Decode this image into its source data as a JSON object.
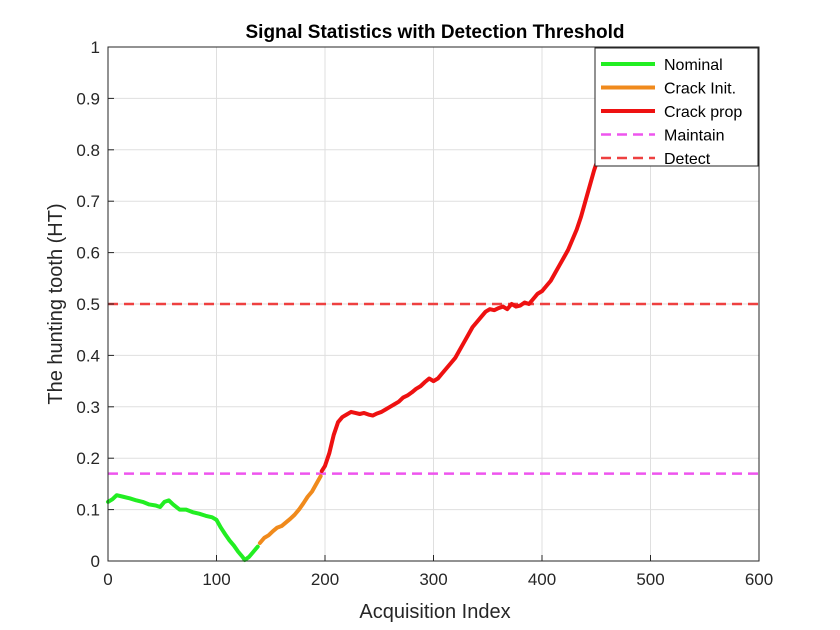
{
  "chart_data": {
    "type": "line",
    "title": "Signal Statistics with Detection Threshold",
    "xlabel": "Acquisition Index",
    "ylabel": "The hunting tooth (HT)",
    "xlim": [
      0,
      600
    ],
    "ylim": [
      0,
      1
    ],
    "xticks": [
      0,
      100,
      200,
      300,
      400,
      500,
      600
    ],
    "yticks": [
      0,
      0.1,
      0.2,
      0.3,
      0.4,
      0.5,
      0.6,
      0.7,
      0.8,
      0.9,
      1
    ],
    "grid": true,
    "legend_position": "top-right",
    "series": [
      {
        "name": "Nominal",
        "color": "#22ee22",
        "style": "solid",
        "x": [
          0,
          4,
          8,
          14,
          20,
          26,
          32,
          38,
          44,
          48,
          52,
          56,
          60,
          66,
          72,
          78,
          84,
          90,
          96,
          100,
          104,
          108,
          112,
          116,
          120,
          124,
          126,
          130,
          134,
          138
        ],
        "y": [
          0.115,
          0.12,
          0.128,
          0.125,
          0.122,
          0.118,
          0.115,
          0.11,
          0.108,
          0.105,
          0.115,
          0.118,
          0.11,
          0.1,
          0.1,
          0.095,
          0.092,
          0.088,
          0.085,
          0.08,
          0.065,
          0.052,
          0.04,
          0.03,
          0.018,
          0.008,
          0.002,
          0.008,
          0.018,
          0.028
        ]
      },
      {
        "name": "Crack Init.",
        "color": "#f08a1c",
        "style": "solid",
        "x": [
          140,
          144,
          148,
          152,
          156,
          160,
          164,
          168,
          172,
          176,
          180,
          184,
          188,
          192,
          196
        ],
        "y": [
          0.035,
          0.045,
          0.05,
          0.058,
          0.065,
          0.068,
          0.075,
          0.082,
          0.09,
          0.1,
          0.112,
          0.125,
          0.135,
          0.15,
          0.165
        ]
      },
      {
        "name": "Crack prop",
        "color": "#ee1111",
        "style": "solid",
        "x": [
          197,
          200,
          204,
          208,
          212,
          216,
          220,
          224,
          228,
          232,
          236,
          240,
          244,
          248,
          252,
          256,
          260,
          264,
          268,
          272,
          276,
          280,
          284,
          288,
          292,
          296,
          300,
          304,
          308,
          312,
          316,
          320,
          324,
          328,
          332,
          336,
          340,
          344,
          348,
          352,
          356,
          360,
          364,
          368,
          372,
          376,
          380,
          384,
          388,
          392,
          396,
          400,
          404,
          408,
          412,
          416,
          420,
          424,
          428,
          432,
          436,
          440,
          444,
          448,
          452,
          455
        ],
        "y": [
          0.175,
          0.185,
          0.21,
          0.245,
          0.27,
          0.28,
          0.285,
          0.29,
          0.288,
          0.286,
          0.288,
          0.285,
          0.283,
          0.287,
          0.29,
          0.295,
          0.3,
          0.305,
          0.31,
          0.318,
          0.322,
          0.328,
          0.335,
          0.34,
          0.348,
          0.355,
          0.35,
          0.355,
          0.365,
          0.375,
          0.385,
          0.395,
          0.41,
          0.425,
          0.44,
          0.455,
          0.465,
          0.475,
          0.485,
          0.49,
          0.488,
          0.492,
          0.495,
          0.49,
          0.5,
          0.495,
          0.497,
          0.503,
          0.5,
          0.51,
          0.52,
          0.525,
          0.535,
          0.545,
          0.56,
          0.575,
          0.59,
          0.605,
          0.625,
          0.645,
          0.67,
          0.7,
          0.73,
          0.76,
          0.785,
          0.8
        ]
      },
      {
        "name": "Maintain",
        "color": "#ee55ee",
        "style": "dashed",
        "x": [
          0,
          600
        ],
        "y": [
          0.17,
          0.17
        ]
      },
      {
        "name": "Detect",
        "color": "#ee4040",
        "style": "dashed",
        "x": [
          0,
          600
        ],
        "y": [
          0.5,
          0.5
        ]
      }
    ]
  }
}
